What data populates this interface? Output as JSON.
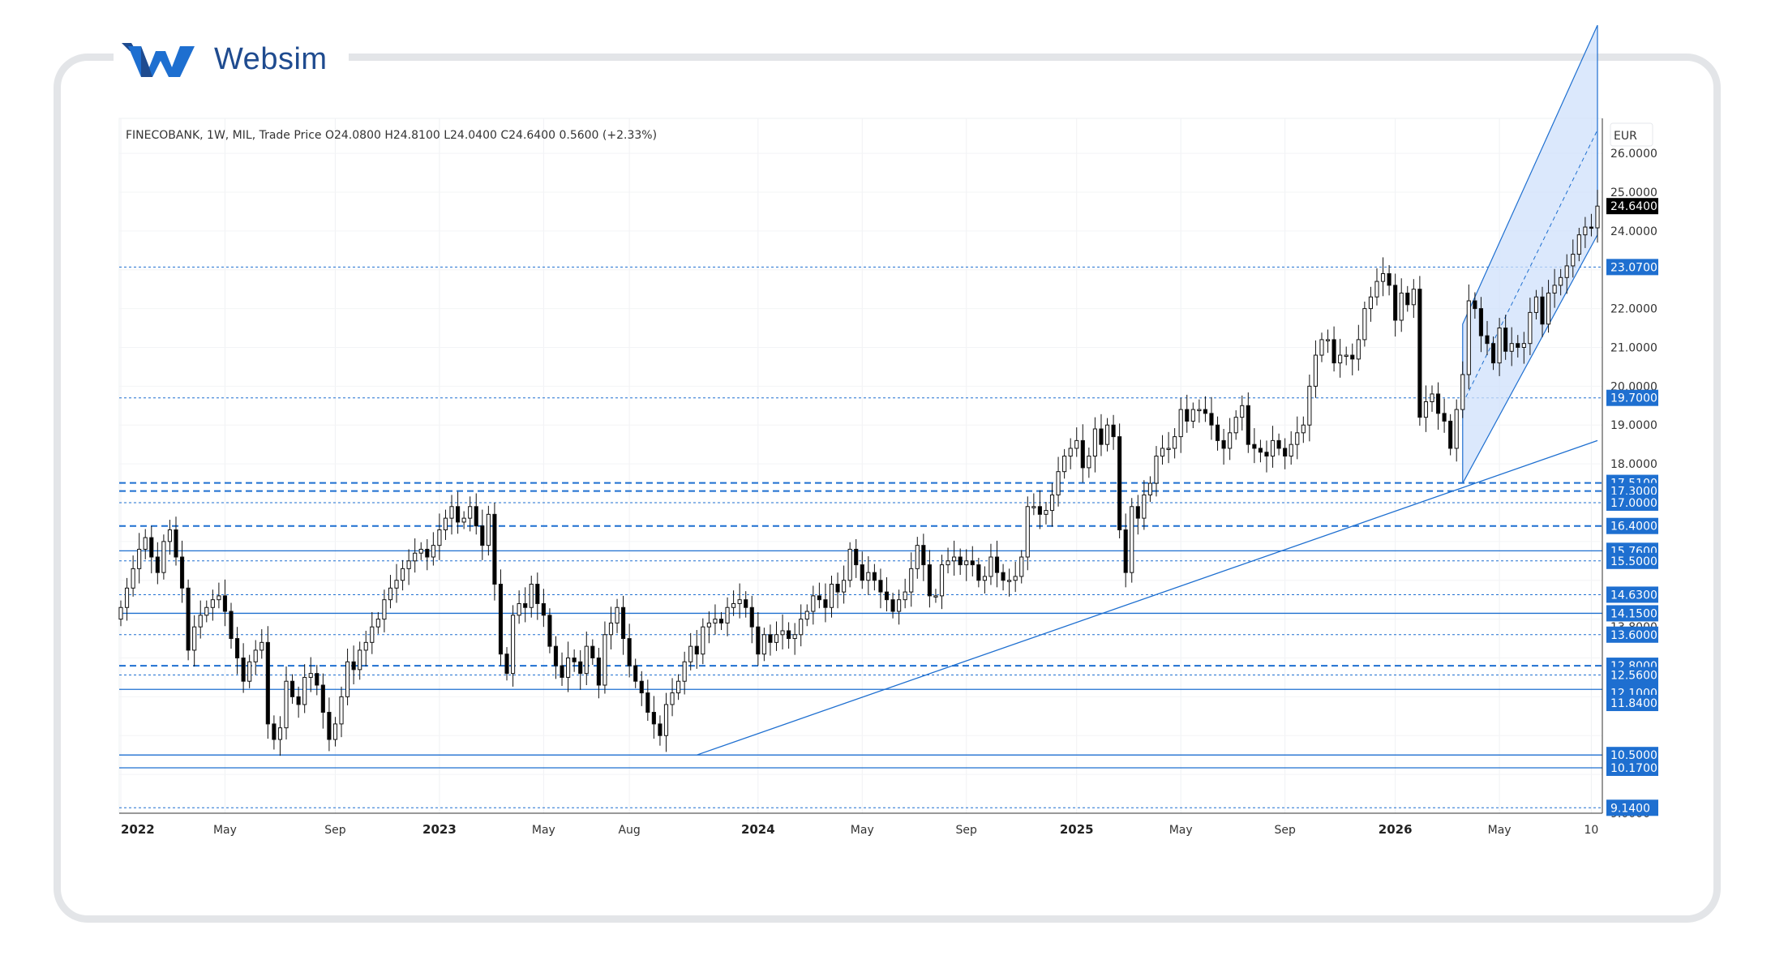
{
  "brand": {
    "name": "Websim",
    "color": "#1e6fd0"
  },
  "chart_data": {
    "type": "candlestick",
    "legend": "FINECOBANK, 1W, MIL, Trade Price  O24.0800  H24.8100  L24.0400  C24.6400  0.5600 (+2.33%)",
    "currency": "EUR",
    "last_price": "24.6400",
    "colors": {
      "accent": "#1e6fd0",
      "price_badge": "#000000",
      "up": "#ffffff",
      "down": "#000000",
      "channel_fill": "#cfe0fb"
    },
    "ylim": [
      9.0,
      26.9
    ],
    "y_ticks": [
      "26.0000",
      "25.0000",
      "24.0000",
      "22.0000",
      "21.0000",
      "20.0000",
      "19.0000",
      "18.0000",
      "13.8000",
      "9.0000"
    ],
    "level_badges": [
      "23.0700",
      "19.7000",
      "17.5100",
      "17.3000",
      "17.0000",
      "16.4000",
      "15.7600",
      "15.5000",
      "14.6300",
      "14.1500",
      "13.6000",
      "12.8000",
      "12.5600",
      "12.1900",
      "12.1000",
      "11.8400",
      "10.5000",
      "10.1700",
      "9.1400"
    ],
    "x_labels": [
      {
        "text": "2022",
        "year": true
      },
      {
        "text": "May",
        "year": false
      },
      {
        "text": "Sep",
        "year": false
      },
      {
        "text": "2023",
        "year": true
      },
      {
        "text": "May",
        "year": false
      },
      {
        "text": "Aug",
        "year": false
      },
      {
        "text": "2024",
        "year": true
      },
      {
        "text": "May",
        "year": false
      },
      {
        "text": "Sep",
        "year": false
      },
      {
        "text": "2025",
        "year": true
      },
      {
        "text": "May",
        "year": false
      },
      {
        "text": "Sep",
        "year": false
      },
      {
        "text": "2026",
        "year": true
      },
      {
        "text": "May",
        "year": false
      },
      {
        "text": "10",
        "year": false
      }
    ],
    "x_label_weeks": [
      0,
      17,
      35,
      52,
      69,
      83,
      104,
      121,
      138,
      156,
      173,
      190,
      208,
      225,
      240
    ],
    "levels": [
      {
        "price": 23.07,
        "style": "dotted"
      },
      {
        "price": 19.7,
        "style": "dotted"
      },
      {
        "price": 17.51,
        "style": "dashed"
      },
      {
        "price": 17.3,
        "style": "dashed"
      },
      {
        "price": 17.0,
        "style": "dotted"
      },
      {
        "price": 16.4,
        "style": "dashed"
      },
      {
        "price": 15.76,
        "style": "solid"
      },
      {
        "price": 15.5,
        "style": "dotted"
      },
      {
        "price": 14.63,
        "style": "dotted"
      },
      {
        "price": 14.15,
        "style": "solid"
      },
      {
        "price": 13.6,
        "style": "dotted"
      },
      {
        "price": 12.8,
        "style": "dashed"
      },
      {
        "price": 12.56,
        "style": "dotted"
      },
      {
        "price": 12.19,
        "style": "solid"
      },
      {
        "price": 10.5,
        "style": "solid"
      },
      {
        "price": 10.17,
        "style": "solid"
      },
      {
        "price": 9.14,
        "style": "dotted"
      }
    ],
    "trend_line": {
      "from": {
        "week": 94,
        "price": 10.5
      },
      "to": {
        "week": 241,
        "price": 18.6
      }
    },
    "channel": {
      "lower_from": {
        "week": 219,
        "price": 17.5
      },
      "lower_to": {
        "week": 241,
        "price": 23.9
      },
      "upper_from": {
        "week": 219,
        "price": 21.6
      },
      "upper_to": {
        "week": 241,
        "price": 29.3
      }
    },
    "closes": [
      14.3,
      14.8,
      15.3,
      15.8,
      16.1,
      15.6,
      15.2,
      16.0,
      16.3,
      15.6,
      14.8,
      13.2,
      13.8,
      14.1,
      14.3,
      14.5,
      14.6,
      14.2,
      13.5,
      13.0,
      12.4,
      12.9,
      13.2,
      13.4,
      11.3,
      10.9,
      11.2,
      12.4,
      12.0,
      11.8,
      12.5,
      12.6,
      12.3,
      11.6,
      10.9,
      11.3,
      12.0,
      12.9,
      12.7,
      13.2,
      13.4,
      13.8,
      14.0,
      14.5,
      14.8,
      15.0,
      15.3,
      15.5,
      15.7,
      15.8,
      15.6,
      15.9,
      16.3,
      16.6,
      16.9,
      16.5,
      16.6,
      16.9,
      16.4,
      15.9,
      16.7,
      14.9,
      13.1,
      12.6,
      14.1,
      14.4,
      14.3,
      14.9,
      14.4,
      14.1,
      13.3,
      12.8,
      12.5,
      13.0,
      12.9,
      12.6,
      13.3,
      13.0,
      12.3,
      13.6,
      13.9,
      14.3,
      13.5,
      12.8,
      12.4,
      12.1,
      11.6,
      11.3,
      11.0,
      11.8,
      12.1,
      12.4,
      12.9,
      13.3,
      13.1,
      13.8,
      13.9,
      14.0,
      13.9,
      14.3,
      14.4,
      14.5,
      14.3,
      13.8,
      13.1,
      13.6,
      13.4,
      13.6,
      13.7,
      13.5,
      13.6,
      14.0,
      14.2,
      14.6,
      14.5,
      14.3,
      14.9,
      14.7,
      15.0,
      15.8,
      15.4,
      15.0,
      15.2,
      15.0,
      14.7,
      14.5,
      14.2,
      14.5,
      14.7,
      15.3,
      15.9,
      15.4,
      14.6,
      14.6,
      15.4,
      15.5,
      15.6,
      15.4,
      15.5,
      15.4,
      15.0,
      15.1,
      15.6,
      15.2,
      15.0,
      15.0,
      15.1,
      15.6,
      16.9,
      16.9,
      16.7,
      16.8,
      17.2,
      17.8,
      18.2,
      18.4,
      18.6,
      17.9,
      18.2,
      18.9,
      18.5,
      19.0,
      18.7,
      16.3,
      15.2,
      16.9,
      16.6,
      17.2,
      17.5,
      18.2,
      18.4,
      18.4,
      18.7,
      19.4,
      19.1,
      19.4,
      19.4,
      19.3,
      19.0,
      18.6,
      18.4,
      18.8,
      19.2,
      19.5,
      18.5,
      18.4,
      18.3,
      18.2,
      18.6,
      18.4,
      18.2,
      18.5,
      18.8,
      19.0,
      20.0,
      20.8,
      21.2,
      21.2,
      20.6,
      20.8,
      20.8,
      20.7,
      21.2,
      22.0,
      22.3,
      22.7,
      22.9,
      22.6,
      21.7,
      22.4,
      22.1,
      22.5,
      19.2,
      19.6,
      19.8,
      19.3,
      19.1,
      18.4,
      19.4,
      20.3,
      22.2,
      22.0,
      21.3,
      21.1,
      20.6,
      21.5,
      20.9,
      21.1,
      21.0,
      21.1,
      21.9,
      22.3,
      21.6,
      22.4,
      22.6,
      22.8,
      23.1,
      23.4,
      23.9,
      24.1,
      24.08,
      24.64
    ]
  }
}
